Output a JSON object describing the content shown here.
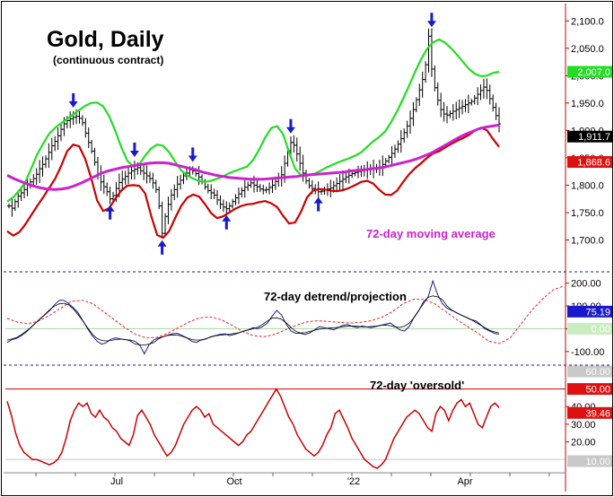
{
  "chart_data": {
    "type": "line",
    "title": "Gold, Daily",
    "subtitle": "(continuous contract)",
    "x_tick_labels": [
      "Jul",
      "Oct",
      "'22",
      "Apr"
    ],
    "colors": {
      "price": "#000000",
      "upper_band": "#22dd22",
      "lower_band": "#cc0000",
      "moving_average": "#cc22cc",
      "arrows": "#1a1acc",
      "detrend": "#1a1a8c",
      "projection": "#ee2222",
      "oscillator": "#cc0000",
      "separator": "#1a1a8c"
    },
    "panels": [
      {
        "name": "price",
        "ylim": [
          1650,
          2125
        ],
        "y_tick_labels": [
          "2,100.0",
          "2,050.0",
          "2,000.0",
          "1,950.0",
          "1,900.0",
          "1,850.0",
          "1,800.0",
          "1,750.0",
          "1,700.0"
        ],
        "y_ticks": [
          2100,
          2050,
          2000,
          1950,
          1900,
          1850,
          1800,
          1750,
          1700
        ],
        "annotation": "72-day moving average",
        "badges": [
          {
            "label": "2,007.0",
            "value": 2007.0,
            "bg": "#22dd22",
            "fg": "#ffffff"
          },
          {
            "label": "1,911.7",
            "value": 1911.7,
            "bg": "#000000",
            "fg": "#ffffff"
          },
          {
            "label": "1,868.6",
            "value": 1868.6,
            "bg": "#dd1111",
            "fg": "#ffffff"
          }
        ],
        "price_closes": [
          1762,
          1758,
          1770,
          1780,
          1786,
          1792,
          1800,
          1806,
          1812,
          1820,
          1830,
          1838,
          1848,
          1860,
          1872,
          1880,
          1890,
          1902,
          1912,
          1918,
          1921,
          1924,
          1926,
          1922,
          1914,
          1895,
          1878,
          1862,
          1842,
          1820,
          1806,
          1797,
          1788,
          1775,
          1781,
          1794,
          1805,
          1811,
          1816,
          1822,
          1826,
          1829,
          1832,
          1826,
          1822,
          1817,
          1812,
          1804,
          1792,
          1762,
          1712,
          1743,
          1765,
          1782,
          1792,
          1802,
          1809,
          1817,
          1822,
          1828,
          1826,
          1821,
          1815,
          1806,
          1797,
          1790,
          1786,
          1782,
          1773,
          1765,
          1760,
          1757,
          1762,
          1770,
          1777,
          1784,
          1790,
          1796,
          1800,
          1804,
          1800,
          1797,
          1793,
          1791,
          1792,
          1796,
          1800,
          1807,
          1813,
          1819,
          1840,
          1863,
          1878,
          1873,
          1857,
          1840,
          1822,
          1808,
          1799,
          1794,
          1791,
          1788,
          1789,
          1791,
          1793,
          1795,
          1799,
          1803,
          1807,
          1811,
          1815,
          1818,
          1821,
          1823,
          1825,
          1826,
          1827,
          1828,
          1829,
          1830,
          1831,
          1833,
          1838,
          1844,
          1851,
          1858,
          1866,
          1875,
          1885,
          1896,
          1908,
          1922,
          1938,
          1956,
          1974,
          1993,
          2020,
          2072,
          2012,
          1978,
          1955,
          1938,
          1930,
          1928,
          1931,
          1935,
          1938,
          1941,
          1944,
          1947,
          1950,
          1953,
          1959,
          1966,
          1973,
          1979,
          1973,
          1958,
          1942,
          1927,
          1912
        ],
        "moving_average": [
          1818,
          1812,
          1807,
          1802,
          1798,
          1795,
          1793,
          1792,
          1793,
          1795,
          1799,
          1804,
          1810,
          1816,
          1822,
          1826,
          1829,
          1832,
          1834,
          1836,
          1838,
          1840,
          1841,
          1841,
          1840,
          1837,
          1834,
          1831,
          1828,
          1824,
          1821,
          1818,
          1816,
          1814,
          1813,
          1812,
          1811,
          1811,
          1811,
          1812,
          1813,
          1814,
          1815,
          1816,
          1818,
          1819,
          1820,
          1821,
          1822,
          1823,
          1824,
          1826,
          1827,
          1828,
          1830,
          1831,
          1833,
          1836,
          1839,
          1842,
          1845,
          1849,
          1854,
          1859,
          1866,
          1873,
          1880,
          1887,
          1893,
          1898,
          1903,
          1906,
          1908,
          1910
        ],
        "upper_band": [
          1770,
          1778,
          1790,
          1805,
          1830,
          1856,
          1876,
          1894,
          1905,
          1913,
          1921,
          1929,
          1937,
          1945,
          1950,
          1951,
          1944,
          1926,
          1900,
          1870,
          1845,
          1834,
          1838,
          1854,
          1867,
          1874,
          1872,
          1860,
          1843,
          1827,
          1818,
          1812,
          1808,
          1806,
          1808,
          1812,
          1816,
          1822,
          1826,
          1830,
          1834,
          1846,
          1865,
          1887,
          1904,
          1908,
          1893,
          1860,
          1830,
          1818,
          1817,
          1820,
          1825,
          1831,
          1836,
          1841,
          1845,
          1849,
          1854,
          1860,
          1870,
          1880,
          1888,
          1898,
          1915,
          1935,
          1958,
          1982,
          2007,
          2030,
          2049,
          2061,
          2066,
          2060,
          2050,
          2038,
          2025,
          2012,
          2003,
          1999,
          2000,
          2005,
          2007
        ],
        "lower_band": [
          1716,
          1708,
          1714,
          1728,
          1745,
          1762,
          1778,
          1795,
          1812,
          1835,
          1862,
          1874,
          1871,
          1848,
          1813,
          1772,
          1753,
          1758,
          1775,
          1790,
          1799,
          1800,
          1799,
          1785,
          1744,
          1709,
          1704,
          1716,
          1740,
          1762,
          1777,
          1783,
          1779,
          1765,
          1749,
          1740,
          1743,
          1750,
          1757,
          1762,
          1765,
          1766,
          1769,
          1771,
          1767,
          1760,
          1744,
          1730,
          1732,
          1752,
          1778,
          1790,
          1793,
          1792,
          1790,
          1789,
          1791,
          1795,
          1800,
          1806,
          1808,
          1803,
          1792,
          1783,
          1782,
          1790,
          1806,
          1820,
          1831,
          1840,
          1850,
          1858,
          1862,
          1869,
          1875,
          1881,
          1886,
          1892,
          1900,
          1905,
          1900,
          1884,
          1870
        ],
        "arrows": [
          {
            "dir": "down",
            "bar": 21,
            "value": 1935
          },
          {
            "dir": "up",
            "bar": 33,
            "value": 1770
          },
          {
            "dir": "down",
            "bar": 41,
            "value": 1845
          },
          {
            "dir": "up",
            "bar": 50,
            "value": 1706
          },
          {
            "dir": "down",
            "bar": 60,
            "value": 1836
          },
          {
            "dir": "up",
            "bar": 71,
            "value": 1752
          },
          {
            "dir": "down",
            "bar": 92,
            "value": 1888
          },
          {
            "dir": "up",
            "bar": 101,
            "value": 1785
          },
          {
            "dir": "down",
            "bar": 138,
            "value": 2082
          }
        ]
      },
      {
        "name": "detrend",
        "label": "72-day detrend/projection",
        "ylim": [
          -140,
          230
        ],
        "y_tick_labels": [
          "200.00",
          "100.00",
          "0.00",
          "-100.00"
        ],
        "y_ticks": [
          200,
          100,
          0,
          -100
        ],
        "badges": [
          {
            "label": "75.19",
            "value": 75.19,
            "bg": "#1a1acc",
            "fg": "#ffffff"
          },
          {
            "label": "0.00",
            "value": 0.0,
            "bg": "#c9ecc0",
            "fg": "#ffffff"
          }
        ],
        "detrend_values": [
          -60,
          -48,
          -42,
          -30,
          -15,
          5,
          25,
          45,
          62,
          80,
          105,
          125,
          125,
          110,
          92,
          70,
          35,
          0,
          -30,
          -55,
          -68,
          -60,
          -45,
          -40,
          -45,
          -48,
          -50,
          -55,
          -70,
          -110,
          -70,
          -50,
          -40,
          -35,
          -28,
          -22,
          -20,
          -30,
          -40,
          -55,
          -60,
          -50,
          -45,
          -35,
          -30,
          -25,
          -22,
          -30,
          -25,
          -18,
          -10,
          -5,
          5,
          0,
          10,
          25,
          55,
          80,
          60,
          20,
          -10,
          -20,
          -20,
          -25,
          -18,
          -5,
          10,
          5,
          0,
          -5,
          5,
          15,
          18,
          10,
          5,
          12,
          8,
          5,
          10,
          15,
          20,
          25,
          10,
          -5,
          -10,
          10,
          50,
          80,
          110,
          140,
          210,
          150,
          110,
          90,
          80,
          70,
          60,
          50,
          40,
          35,
          20,
          0,
          -10,
          -20,
          -25
        ],
        "projection_values": [
          45,
          28,
          22,
          35,
          60,
          90,
          120,
          125,
          110,
          75,
          40,
          5,
          -25,
          -40,
          -38,
          -20,
          5,
          30,
          48,
          52,
          40,
          15,
          -12,
          -30,
          -35,
          -25,
          -5,
          15,
          30,
          35,
          32,
          28,
          25,
          28,
          35,
          50,
          75,
          110,
          130,
          128,
          108,
          75,
          40,
          10,
          -20,
          -55,
          -65,
          -40,
          20,
          80,
          130,
          170,
          188
        ]
      },
      {
        "name": "oscillator",
        "label": "72-day 'oversold'",
        "ylim": [
          5,
          62
        ],
        "y_tick_labels": [
          "40.00",
          "30.00",
          "20.00"
        ],
        "y_ticks": [
          40,
          30,
          20
        ],
        "badges": [
          {
            "label": "60.00",
            "value": 60,
            "bg": "#c8c8c8",
            "fg": "#ffffff"
          },
          {
            "label": "50.00",
            "value": 50,
            "bg": "#dd1111",
            "fg": "#ffffff"
          },
          {
            "label": "39.46",
            "value": 39.46,
            "bg": "#dd1111",
            "fg": "#ffffff"
          },
          {
            "label": "10.00",
            "value": 10,
            "bg": "#c8c8c8",
            "fg": "#ffffff"
          }
        ],
        "values": [
          43,
          35,
          25,
          18,
          14,
          12,
          10,
          10,
          9,
          8,
          7,
          8,
          10,
          14,
          22,
          32,
          38,
          42,
          40,
          42,
          36,
          34,
          38,
          34,
          32,
          28,
          26,
          22,
          20,
          18,
          24,
          35,
          38,
          34,
          30,
          24,
          20,
          16,
          12,
          14,
          18,
          24,
          30,
          34,
          38,
          40,
          38,
          34,
          36,
          30,
          28,
          26,
          24,
          22,
          20,
          18,
          20,
          24,
          26,
          30,
          34,
          38,
          42,
          46,
          50,
          46,
          40,
          34,
          30,
          24,
          20,
          16,
          14,
          12,
          14,
          18,
          24,
          28,
          36,
          38,
          33,
          28,
          22,
          18,
          14,
          10,
          8,
          6,
          5,
          7,
          10,
          16,
          22,
          26,
          30,
          34,
          36,
          38,
          36,
          32,
          28,
          26,
          36,
          40,
          38,
          32,
          38,
          42,
          44,
          40,
          42,
          36,
          30,
          28,
          34,
          40,
          42,
          39.46
        ]
      }
    ]
  }
}
